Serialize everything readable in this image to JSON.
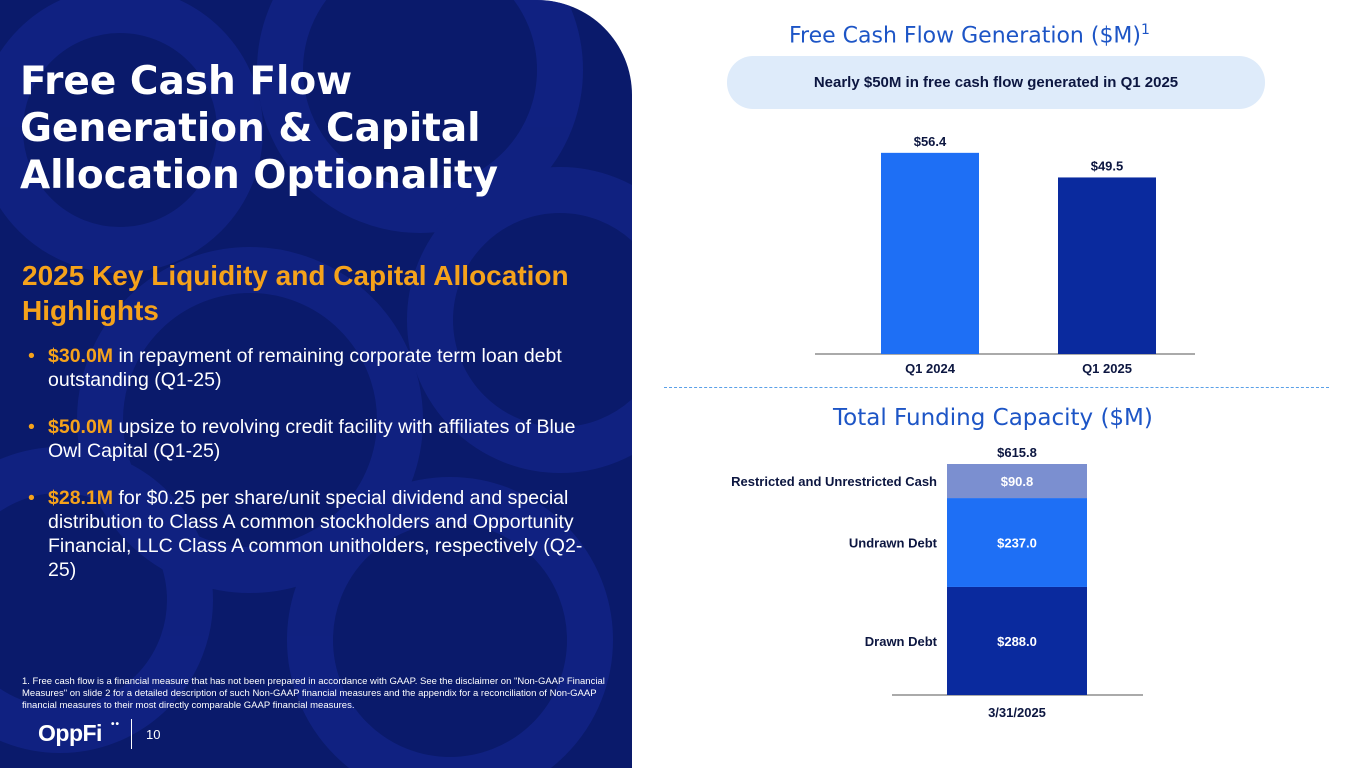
{
  "slide": {
    "title": "Free Cash Flow Generation & Capital Allocation Optionality",
    "subtitle": "2025 Key Liquidity and Capital Allocation Highlights",
    "bullets": [
      {
        "highlight": "$30.0M",
        "text": " in repayment of remaining corporate term loan debt outstanding (Q1-25)"
      },
      {
        "highlight": "$50.0M",
        "text": " upsize to revolving credit facility with affiliates of Blue Owl Capital (Q1-25)"
      },
      {
        "highlight": "$28.1M",
        "text": " for $0.25 per share/unit special dividend and special distribution to Class A common stockholders and Opportunity Financial, LLC Class A common unitholders, respectively (Q2-25)"
      }
    ],
    "bullet_glyph": "•",
    "footnote": "1. Free cash flow is a financial measure that has not been prepared in accordance with GAAP. See the disclaimer on \"Non-GAAP Financial Measures\" on slide 2 for a detailed description of such Non-GAAP financial measures and the appendix for a reconciliation of Non-GAAP financial measures to their most directly comparable GAAP financial measures.",
    "logo_text": "OppFi",
    "logo_dots": "••",
    "page_number": "10",
    "colors": {
      "navy": "#0a1a6b",
      "orange": "#f5a21b",
      "bright_blue": "#1e6ff5",
      "dark_blue": "#0a2a9e",
      "light_blue": "#7b8fd0"
    }
  },
  "chart_data": [
    {
      "type": "bar",
      "title": "Free Cash Flow Generation ($M)",
      "title_superscript": "1",
      "callout": "Nearly $50M in free cash flow generated in Q1 2025",
      "categories": [
        "Q1 2024",
        "Q1 2025"
      ],
      "values": [
        56.4,
        49.5
      ],
      "value_labels": [
        "$56.4",
        "$49.5"
      ],
      "colors": [
        "#1e6ff5",
        "#0a2a9e"
      ],
      "ylim": [
        0,
        60
      ],
      "grid": false,
      "legend": "none"
    },
    {
      "type": "bar",
      "stacked": true,
      "title": "Total Funding Capacity ($M)",
      "categories": [
        "3/31/2025"
      ],
      "total_label": "$615.8",
      "series": [
        {
          "name": "Drawn Debt",
          "values": [
            288.0
          ],
          "value_label": "$288.0",
          "color": "#0a2a9e"
        },
        {
          "name": "Undrawn Debt",
          "values": [
            237.0
          ],
          "value_label": "$237.0",
          "color": "#1e6ff5"
        },
        {
          "name": "Restricted and Unrestricted Cash",
          "values": [
            90.8
          ],
          "value_label": "$90.8",
          "color": "#7b8fd0"
        }
      ],
      "ylim": [
        0,
        615.8
      ],
      "grid": false,
      "legend": "left-side labels"
    }
  ]
}
